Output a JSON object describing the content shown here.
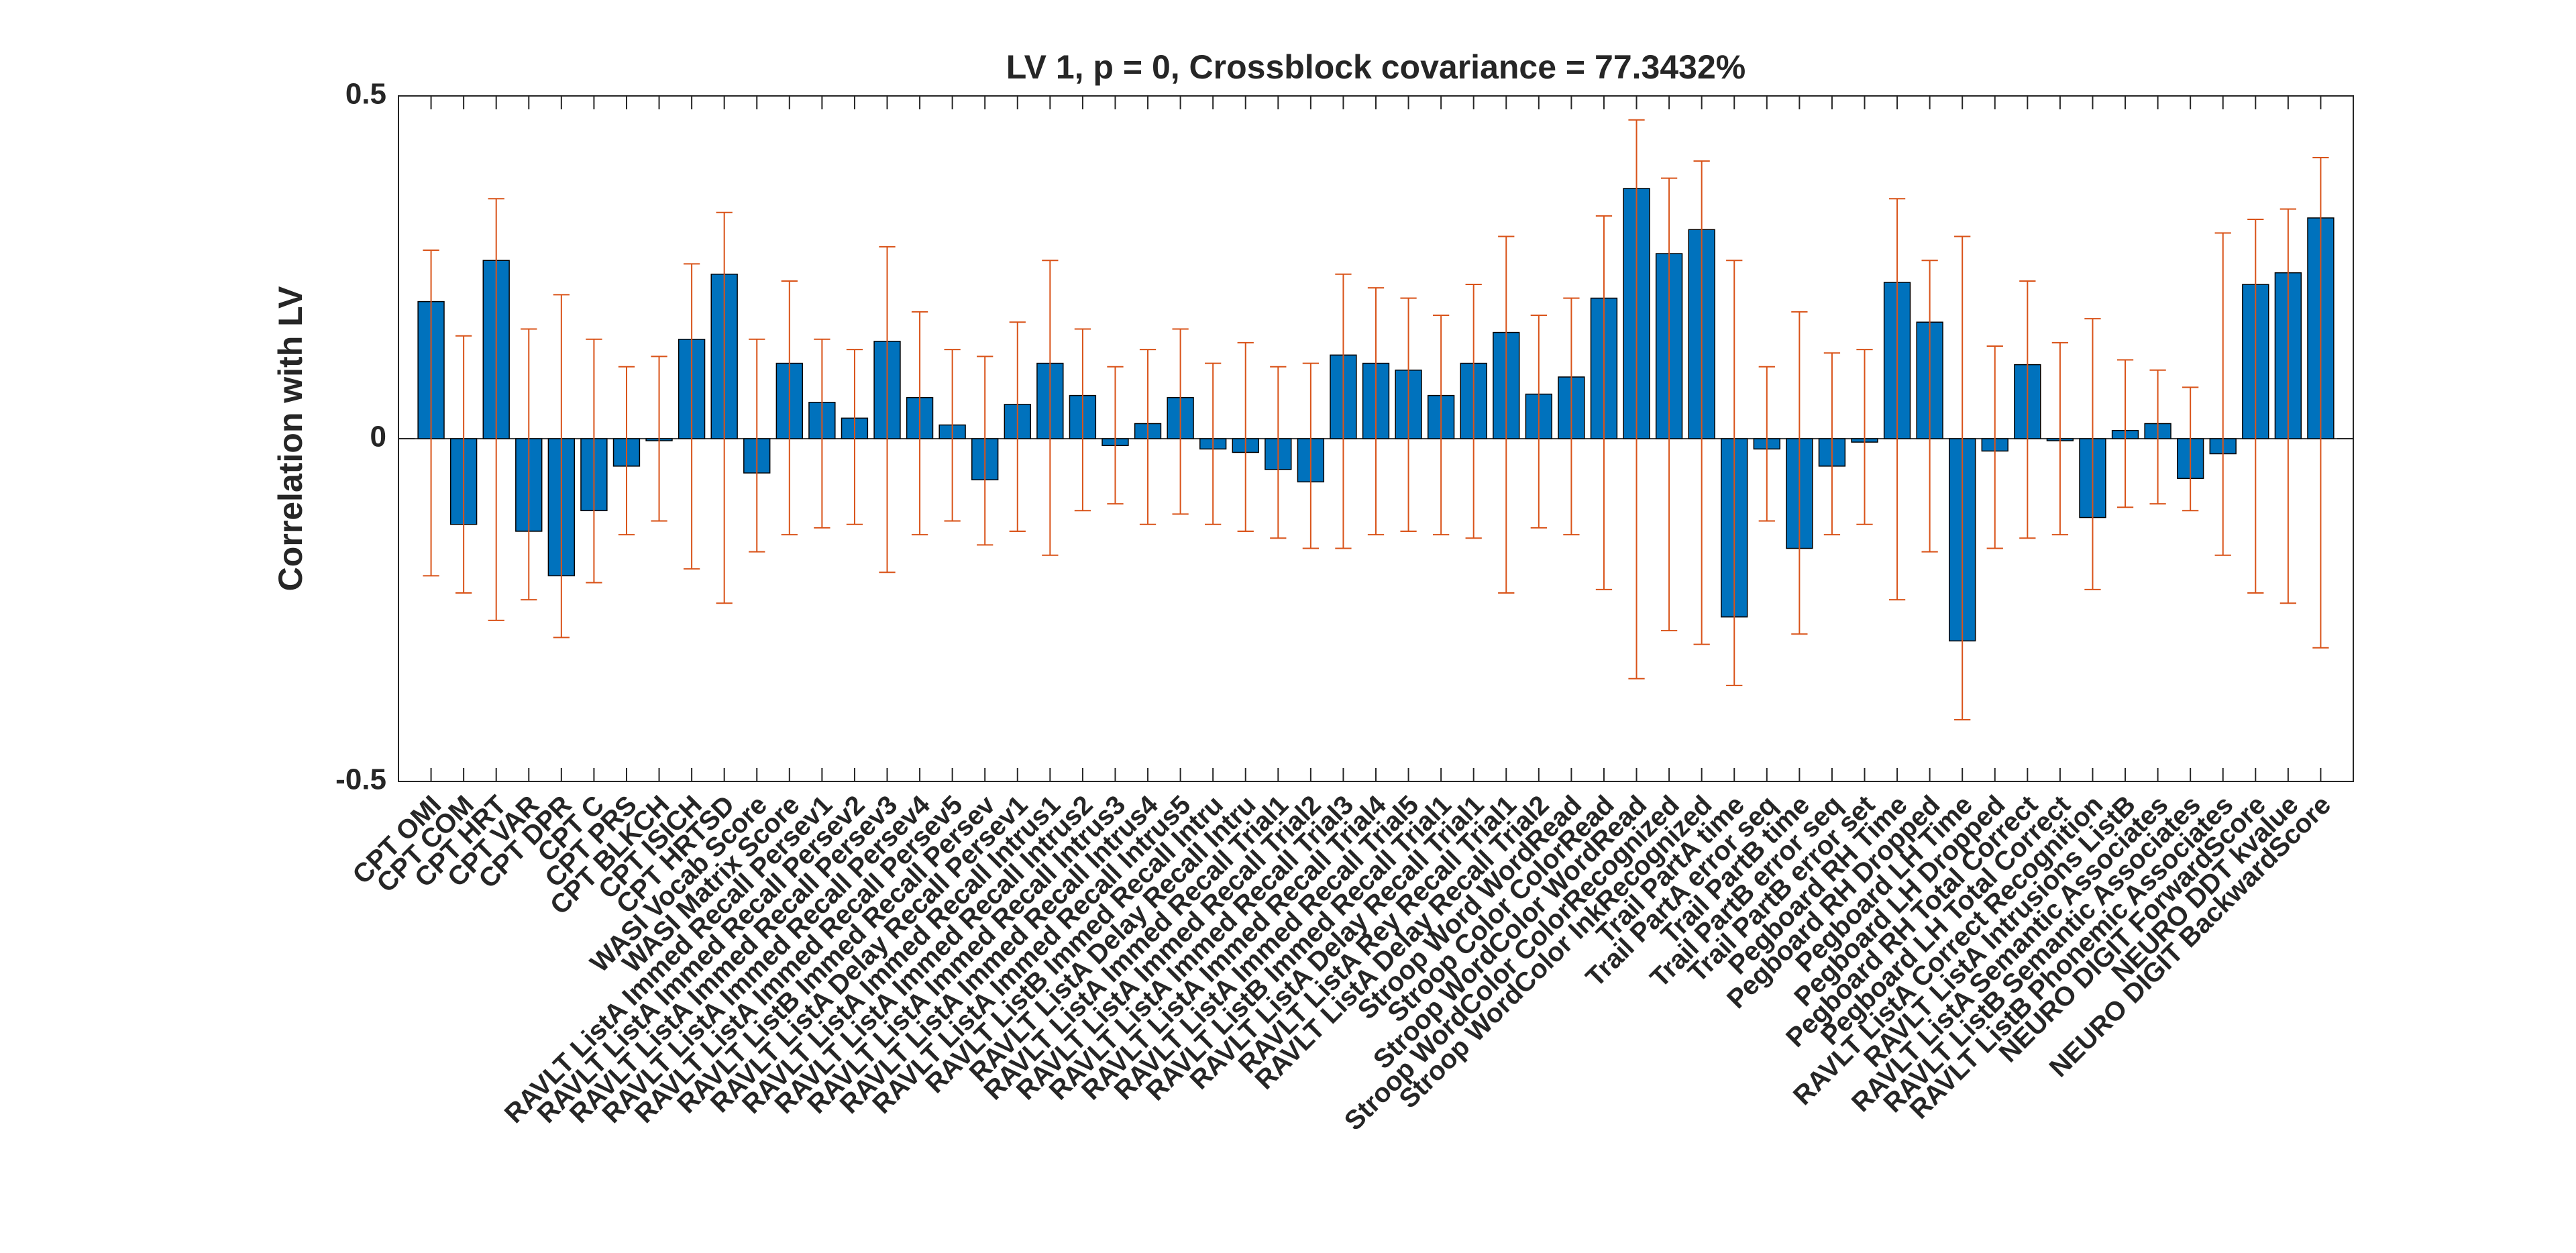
{
  "chart_data": {
    "type": "bar",
    "title": "LV 1, p = 0, Crossblock covariance = 77.3432%",
    "ylabel": "Correlation with LV",
    "categories": [
      "CPT OMI",
      "CPT COM",
      "CPT HRT",
      "CPT VAR",
      "CPT DPR",
      "CPT C",
      "CPT PRS",
      "CPT BLKCH",
      "CPT ISICH",
      "CPT HRTSD",
      "WASI Vocab Score",
      "WASI Matrix Score",
      "RAVLT ListA Immed Recall Persev1",
      "RAVLT ListA Immed Recall Persev2",
      "RAVLT ListA Immed Recall Persev3",
      "RAVLT ListA Immed Recall Persev4",
      "RAVLT ListA Immed Recall Persev5",
      "RAVLT ListB Immed Recall Persev",
      "RAVLT ListA Delay Recall Persev1",
      "RAVLT ListA Immed Recall Intrus1",
      "RAVLT ListA Immed Recall Intrus2",
      "RAVLT ListA Immed Recall Intrus3",
      "RAVLT ListA Immed Recall Intrus4",
      "RAVLT ListA Immed Recall Intrus5",
      "RAVLT ListB Immed Recall Intru",
      "RAVLT ListA Delay Recall Intru",
      "RAVLT ListA Immed Recall Trial1",
      "RAVLT ListA Immed Recall Trial2",
      "RAVLT ListA Immed Recall Trial3",
      "RAVLT ListA Immed Recall Trial4",
      "RAVLT ListA Immed Recall Trial5",
      "RAVLT ListB Immed Recall Trial1",
      "RAVLT ListA Delay Recall Trial1",
      "RAVLT ListA Rey Recall Trial1",
      "RAVLT ListA Delay Recall Trial2",
      "Stroop Word WordRead",
      "Stroop Color ColorRead",
      "Stroop WordColor WordRead",
      "Stroop WordColor ColorRecognized",
      "Stroop WordColor InkRecognized",
      "Trail PartA time",
      "Trail PartA error seq",
      "Trail PartB time",
      "Trail PartB error seq",
      "Trail PartB error set",
      "Pegboard RH Time",
      "Pegboard RH Dropped",
      "Pegboard LH Time",
      "Pegboard LH Dropped",
      "Pegboard RH Total Correct",
      "Pegboard LH Total Correct",
      "RAVLT ListA Correct Recognition",
      "RAVLT ListA Intrusions ListB",
      "RAVLT ListA Semantic Associates",
      "RAVLT ListB Semantic Associates",
      "RAVLT ListB Phonemic Associates",
      "NEURO DIGIT ForwardScore",
      "NEURO DDT kvalue",
      "NEURO DIGIT BackwardScore"
    ],
    "values": [
      0.2,
      -0.125,
      0.26,
      -0.135,
      -0.2,
      -0.105,
      -0.04,
      -0.003,
      0.145,
      0.24,
      -0.05,
      0.11,
      0.053,
      0.03,
      0.142,
      0.06,
      0.02,
      -0.06,
      0.05,
      0.11,
      0.063,
      -0.01,
      0.022,
      0.06,
      -0.015,
      -0.02,
      -0.045,
      -0.063,
      0.122,
      0.11,
      0.1,
      0.063,
      0.11,
      0.155,
      0.065,
      0.09,
      0.205,
      0.365,
      0.27,
      0.305,
      -0.26,
      -0.015,
      -0.16,
      -0.04,
      -0.005,
      0.228,
      0.17,
      -0.295,
      -0.018,
      0.108,
      -0.003,
      -0.115,
      0.012,
      0.022,
      -0.058,
      -0.022,
      0.225,
      0.242,
      0.322
    ],
    "lower": [
      -0.2,
      -0.225,
      -0.265,
      -0.235,
      -0.29,
      -0.21,
      -0.14,
      -0.12,
      -0.19,
      -0.24,
      -0.165,
      -0.14,
      -0.13,
      -0.125,
      -0.195,
      -0.14,
      -0.12,
      -0.155,
      -0.135,
      -0.17,
      -0.105,
      -0.095,
      -0.125,
      -0.11,
      -0.125,
      -0.135,
      -0.145,
      -0.16,
      -0.16,
      -0.14,
      -0.135,
      -0.14,
      -0.145,
      -0.225,
      -0.13,
      -0.14,
      -0.22,
      -0.35,
      -0.28,
      -0.3,
      -0.36,
      -0.12,
      -0.285,
      -0.14,
      -0.125,
      -0.235,
      -0.165,
      -0.41,
      -0.16,
      -0.145,
      -0.14,
      -0.22,
      -0.1,
      -0.095,
      -0.105,
      -0.17,
      -0.225,
      -0.24,
      -0.305
    ],
    "upper": [
      0.275,
      0.15,
      0.35,
      0.16,
      0.21,
      0.145,
      0.105,
      0.12,
      0.255,
      0.33,
      0.145,
      0.23,
      0.145,
      0.13,
      0.28,
      0.185,
      0.13,
      0.12,
      0.17,
      0.26,
      0.16,
      0.105,
      0.13,
      0.16,
      0.11,
      0.14,
      0.105,
      0.11,
      0.24,
      0.22,
      0.205,
      0.18,
      0.225,
      0.295,
      0.18,
      0.205,
      0.325,
      0.465,
      0.38,
      0.405,
      0.26,
      0.105,
      0.185,
      0.125,
      0.13,
      0.35,
      0.26,
      0.295,
      0.135,
      0.23,
      0.14,
      0.175,
      0.115,
      0.1,
      0.075,
      0.3,
      0.32,
      0.335,
      0.41
    ],
    "color": "#0072bd",
    "error_color": "#d95319",
    "xlim": [
      0,
      60
    ],
    "ylim": [
      -0.5,
      0.5
    ],
    "yticks": [
      -0.5,
      0,
      0.5
    ]
  }
}
